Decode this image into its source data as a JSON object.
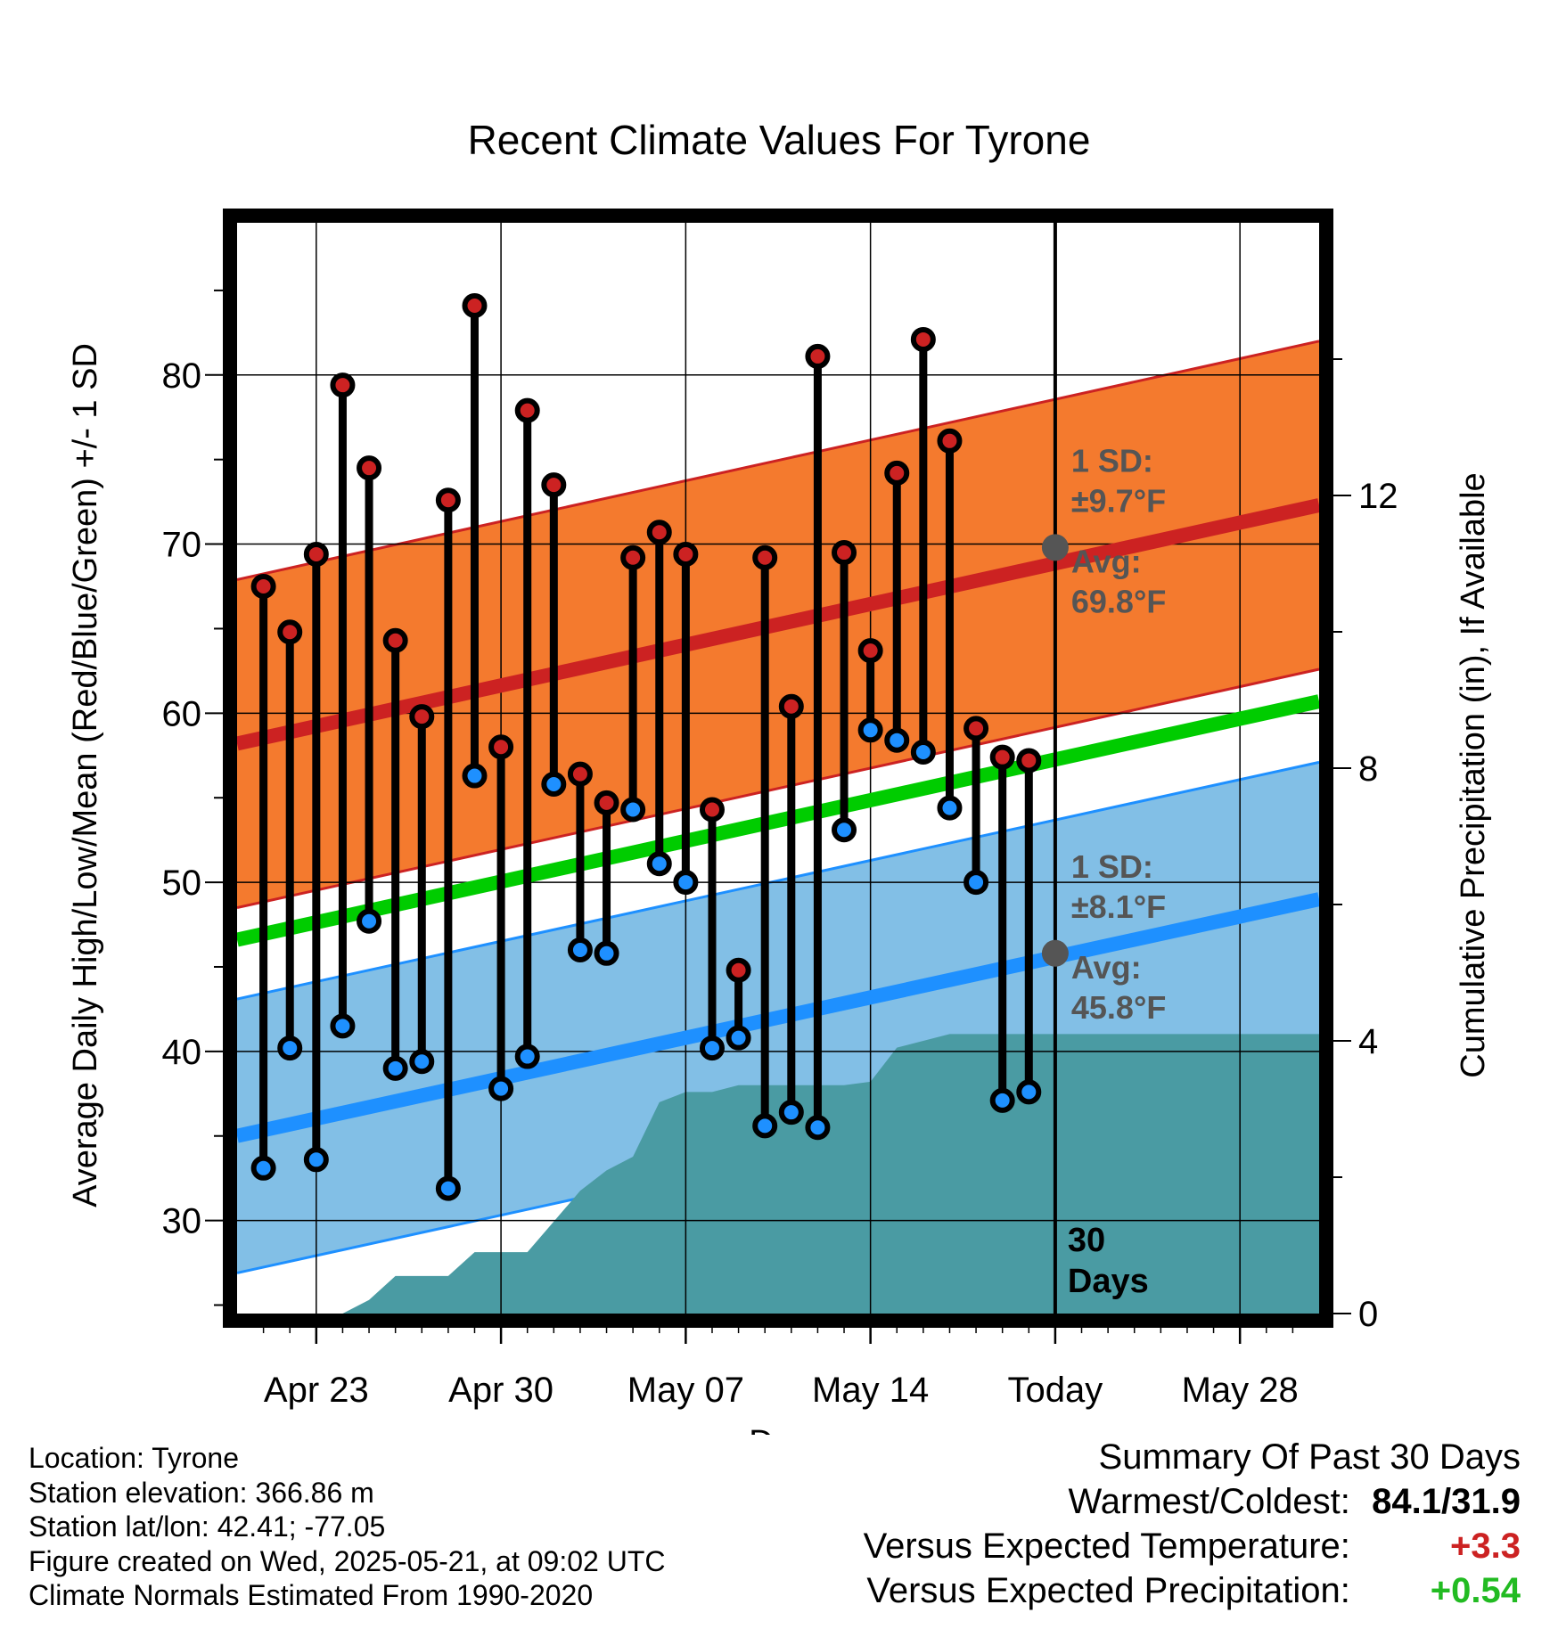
{
  "title": "Recent Climate Values For Tyrone",
  "chart_data": {
    "type": "line",
    "title": "Recent Climate Values For Tyrone",
    "xlabel": "Day",
    "ylabel": "Average Daily High/Low/Mean (Red/Blue/Green) +/- 1 SD",
    "y2label": "Cumulative Precipitation (in), If Available",
    "xlim": [
      "2025-04-20",
      "2025-05-31"
    ],
    "ylim": [
      24.5,
      89
    ],
    "y2lim": [
      0,
      16
    ],
    "y_ticks": [
      30,
      40,
      50,
      60,
      70,
      80
    ],
    "y2_ticks": [
      0,
      4,
      8,
      12
    ],
    "x_tick_dates": [
      "2025-04-23",
      "2025-04-30",
      "2025-05-07",
      "2025-05-14",
      "2025-05-21",
      "2025-05-28"
    ],
    "x_tick_labels": [
      "Apr 23",
      "Apr 30",
      "May 07",
      "May 14",
      "Today",
      "May 28"
    ],
    "grid": true,
    "today": "2025-05-21",
    "today_label": "30 Days",
    "series": [
      {
        "name": "Daily High",
        "color": "#cc2222",
        "x": [
          "2025-04-21",
          "2025-04-22",
          "2025-04-23",
          "2025-04-24",
          "2025-04-25",
          "2025-04-26",
          "2025-04-27",
          "2025-04-28",
          "2025-04-29",
          "2025-04-30",
          "2025-05-01",
          "2025-05-02",
          "2025-05-03",
          "2025-05-04",
          "2025-05-05",
          "2025-05-06",
          "2025-05-07",
          "2025-05-08",
          "2025-05-09",
          "2025-05-10",
          "2025-05-11",
          "2025-05-12",
          "2025-05-13",
          "2025-05-14",
          "2025-05-15",
          "2025-05-16",
          "2025-05-17",
          "2025-05-18",
          "2025-05-19",
          "2025-05-20"
        ],
        "values": [
          67.5,
          64.8,
          69.4,
          79.4,
          74.5,
          64.3,
          59.8,
          72.6,
          84.1,
          58.0,
          77.9,
          73.5,
          56.4,
          54.7,
          69.2,
          70.7,
          69.4,
          54.3,
          44.8,
          69.2,
          60.4,
          81.1,
          69.5,
          63.7,
          74.2,
          82.1,
          76.1,
          59.1,
          57.4,
          57.2
        ]
      },
      {
        "name": "Daily Low",
        "color": "#1e90ff",
        "x": [
          "2025-04-21",
          "2025-04-22",
          "2025-04-23",
          "2025-04-24",
          "2025-04-25",
          "2025-04-26",
          "2025-04-27",
          "2025-04-28",
          "2025-04-29",
          "2025-04-30",
          "2025-05-01",
          "2025-05-02",
          "2025-05-03",
          "2025-05-04",
          "2025-05-05",
          "2025-05-06",
          "2025-05-07",
          "2025-05-08",
          "2025-05-09",
          "2025-05-10",
          "2025-05-11",
          "2025-05-12",
          "2025-05-13",
          "2025-05-14",
          "2025-05-15",
          "2025-05-16",
          "2025-05-17",
          "2025-05-18",
          "2025-05-19",
          "2025-05-20"
        ],
        "values": [
          33.1,
          40.2,
          33.6,
          41.5,
          47.7,
          39.0,
          39.4,
          31.9,
          56.3,
          37.8,
          39.7,
          55.8,
          46.0,
          45.8,
          54.3,
          51.1,
          50.0,
          40.2,
          40.8,
          35.6,
          36.4,
          35.5,
          53.1,
          59.0,
          58.4,
          57.7,
          54.4,
          50.0,
          37.1,
          37.6
        ]
      },
      {
        "name": "Normal High",
        "color": "#cc2222",
        "x": [
          "2025-04-20",
          "2025-05-31"
        ],
        "values": [
          58.2,
          72.3
        ],
        "sd": 9.7
      },
      {
        "name": "Normal Low",
        "color": "#1e90ff",
        "x": [
          "2025-04-20",
          "2025-05-31"
        ],
        "values": [
          35.0,
          49.0
        ],
        "sd": 8.1
      },
      {
        "name": "Normal Mean",
        "color": "#00cc00",
        "x": [
          "2025-04-20",
          "2025-05-31"
        ],
        "values": [
          46.6,
          60.7
        ]
      },
      {
        "name": "Cumulative Precipitation",
        "color": "#4a9ba3",
        "axis": "y2",
        "x": [
          "2025-04-21",
          "2025-04-22",
          "2025-04-23",
          "2025-04-24",
          "2025-04-25",
          "2025-04-26",
          "2025-04-27",
          "2025-04-28",
          "2025-04-29",
          "2025-04-30",
          "2025-05-01",
          "2025-05-02",
          "2025-05-03",
          "2025-05-04",
          "2025-05-05",
          "2025-05-06",
          "2025-05-07",
          "2025-05-08",
          "2025-05-09",
          "2025-05-10",
          "2025-05-11",
          "2025-05-12",
          "2025-05-13",
          "2025-05-14",
          "2025-05-15",
          "2025-05-16",
          "2025-05-17",
          "2025-05-18",
          "2025-05-19",
          "2025-05-20",
          "2025-05-31"
        ],
        "values": [
          0,
          0,
          0,
          0,
          0.2,
          0.55,
          0.55,
          0.55,
          0.9,
          0.9,
          0.9,
          1.35,
          1.8,
          2.1,
          2.3,
          3.1,
          3.25,
          3.25,
          3.35,
          3.35,
          3.35,
          3.35,
          3.35,
          3.4,
          3.9,
          4.0,
          4.1,
          4.1,
          4.1,
          4.1,
          4.1
        ]
      }
    ],
    "annotations": {
      "high": {
        "sd_label": "1 SD:",
        "sd_value": "±9.7°F",
        "avg_label": "Avg:",
        "avg_value": "69.8°F",
        "avg": 69.8
      },
      "low": {
        "sd_label": "1 SD:",
        "sd_value": "±8.1°F",
        "avg_label": "Avg:",
        "avg_value": "45.8°F",
        "avg": 45.8
      },
      "today_line_1": "30",
      "today_line_2": "Days"
    }
  },
  "footer": {
    "location": "Location: Tyrone",
    "elevation": "Station elevation: 366.86 m",
    "latlon": "Station lat/lon: 42.41; -77.05",
    "created": "Figure created on Wed, 2025-05-21, at 09:02 UTC",
    "normals": "Climate Normals Estimated From 1990-2020"
  },
  "summary": {
    "heading": "Summary Of Past 30 Days",
    "warm_cold_label": "Warmest/Coldest:",
    "warm_cold_value": "84.1/31.9",
    "temp_label": "Versus Expected Temperature:",
    "temp_value": "+3.3",
    "temp_color": "#cc2222",
    "precip_label": "Versus Expected Precipitation:",
    "precip_value": "+0.54",
    "precip_color": "#22bb22"
  }
}
